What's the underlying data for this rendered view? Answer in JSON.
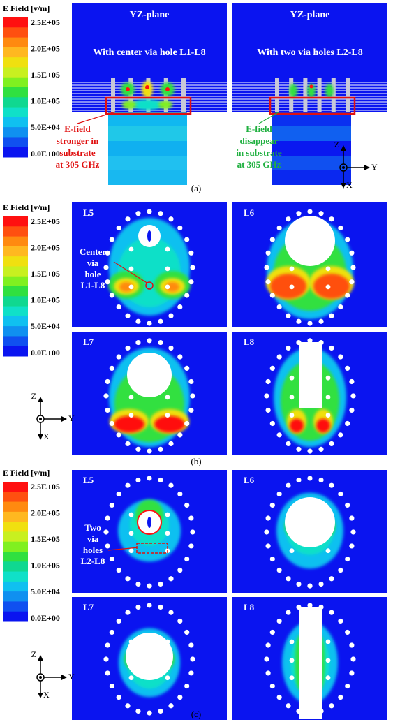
{
  "panels": [
    {
      "caption": "(a)",
      "colorbar": {
        "title": "E Field [v/m]",
        "labels": [
          "2.5E+05",
          "2.0E+05",
          "1.5E+05",
          "1.0E+05",
          "5.0E+04",
          "0.0E+00"
        ]
      },
      "plots": [
        {
          "title": "YZ-plane",
          "subtitle": "With center via hole L1-L8",
          "annotation": [
            "E-field",
            "stronger in",
            "substrate",
            "at 305 GHz"
          ]
        },
        {
          "title": "YZ-plane",
          "subtitle": "With two via holes L2-L8",
          "annotation": [
            "E-field",
            "disappear",
            "in substrate",
            "at 305 GHz"
          ]
        }
      ],
      "axes": [
        "Z",
        "Y",
        "X"
      ]
    },
    {
      "caption": "(b)",
      "colorbar": {
        "title": "E Field [v/m]",
        "labels": [
          "2.5E+05",
          "2.0E+05",
          "1.5E+05",
          "1.0E+05",
          "5.0E+04",
          "0.0E+00"
        ]
      },
      "plots": [
        {
          "title": "L5",
          "annotation": [
            "Center",
            "via",
            "hole",
            "L1-L8"
          ]
        },
        {
          "title": "L6"
        },
        {
          "title": "L7"
        },
        {
          "title": "L8"
        }
      ],
      "axes": [
        "Z",
        "Y",
        "X"
      ]
    },
    {
      "caption": "(c)",
      "colorbar": {
        "title": "E Field [v/m]",
        "labels": [
          "2.5E+05",
          "2.0E+05",
          "1.5E+05",
          "1.0E+05",
          "5.0E+04",
          "0.0E+00"
        ]
      },
      "plots": [
        {
          "title": "L5",
          "annotation": [
            "Two",
            "via",
            "holes",
            "L2-L8"
          ]
        },
        {
          "title": "L6"
        },
        {
          "title": "L7"
        },
        {
          "title": "L8"
        }
      ],
      "axes": [
        "Z",
        "Y",
        "X"
      ]
    }
  ]
}
